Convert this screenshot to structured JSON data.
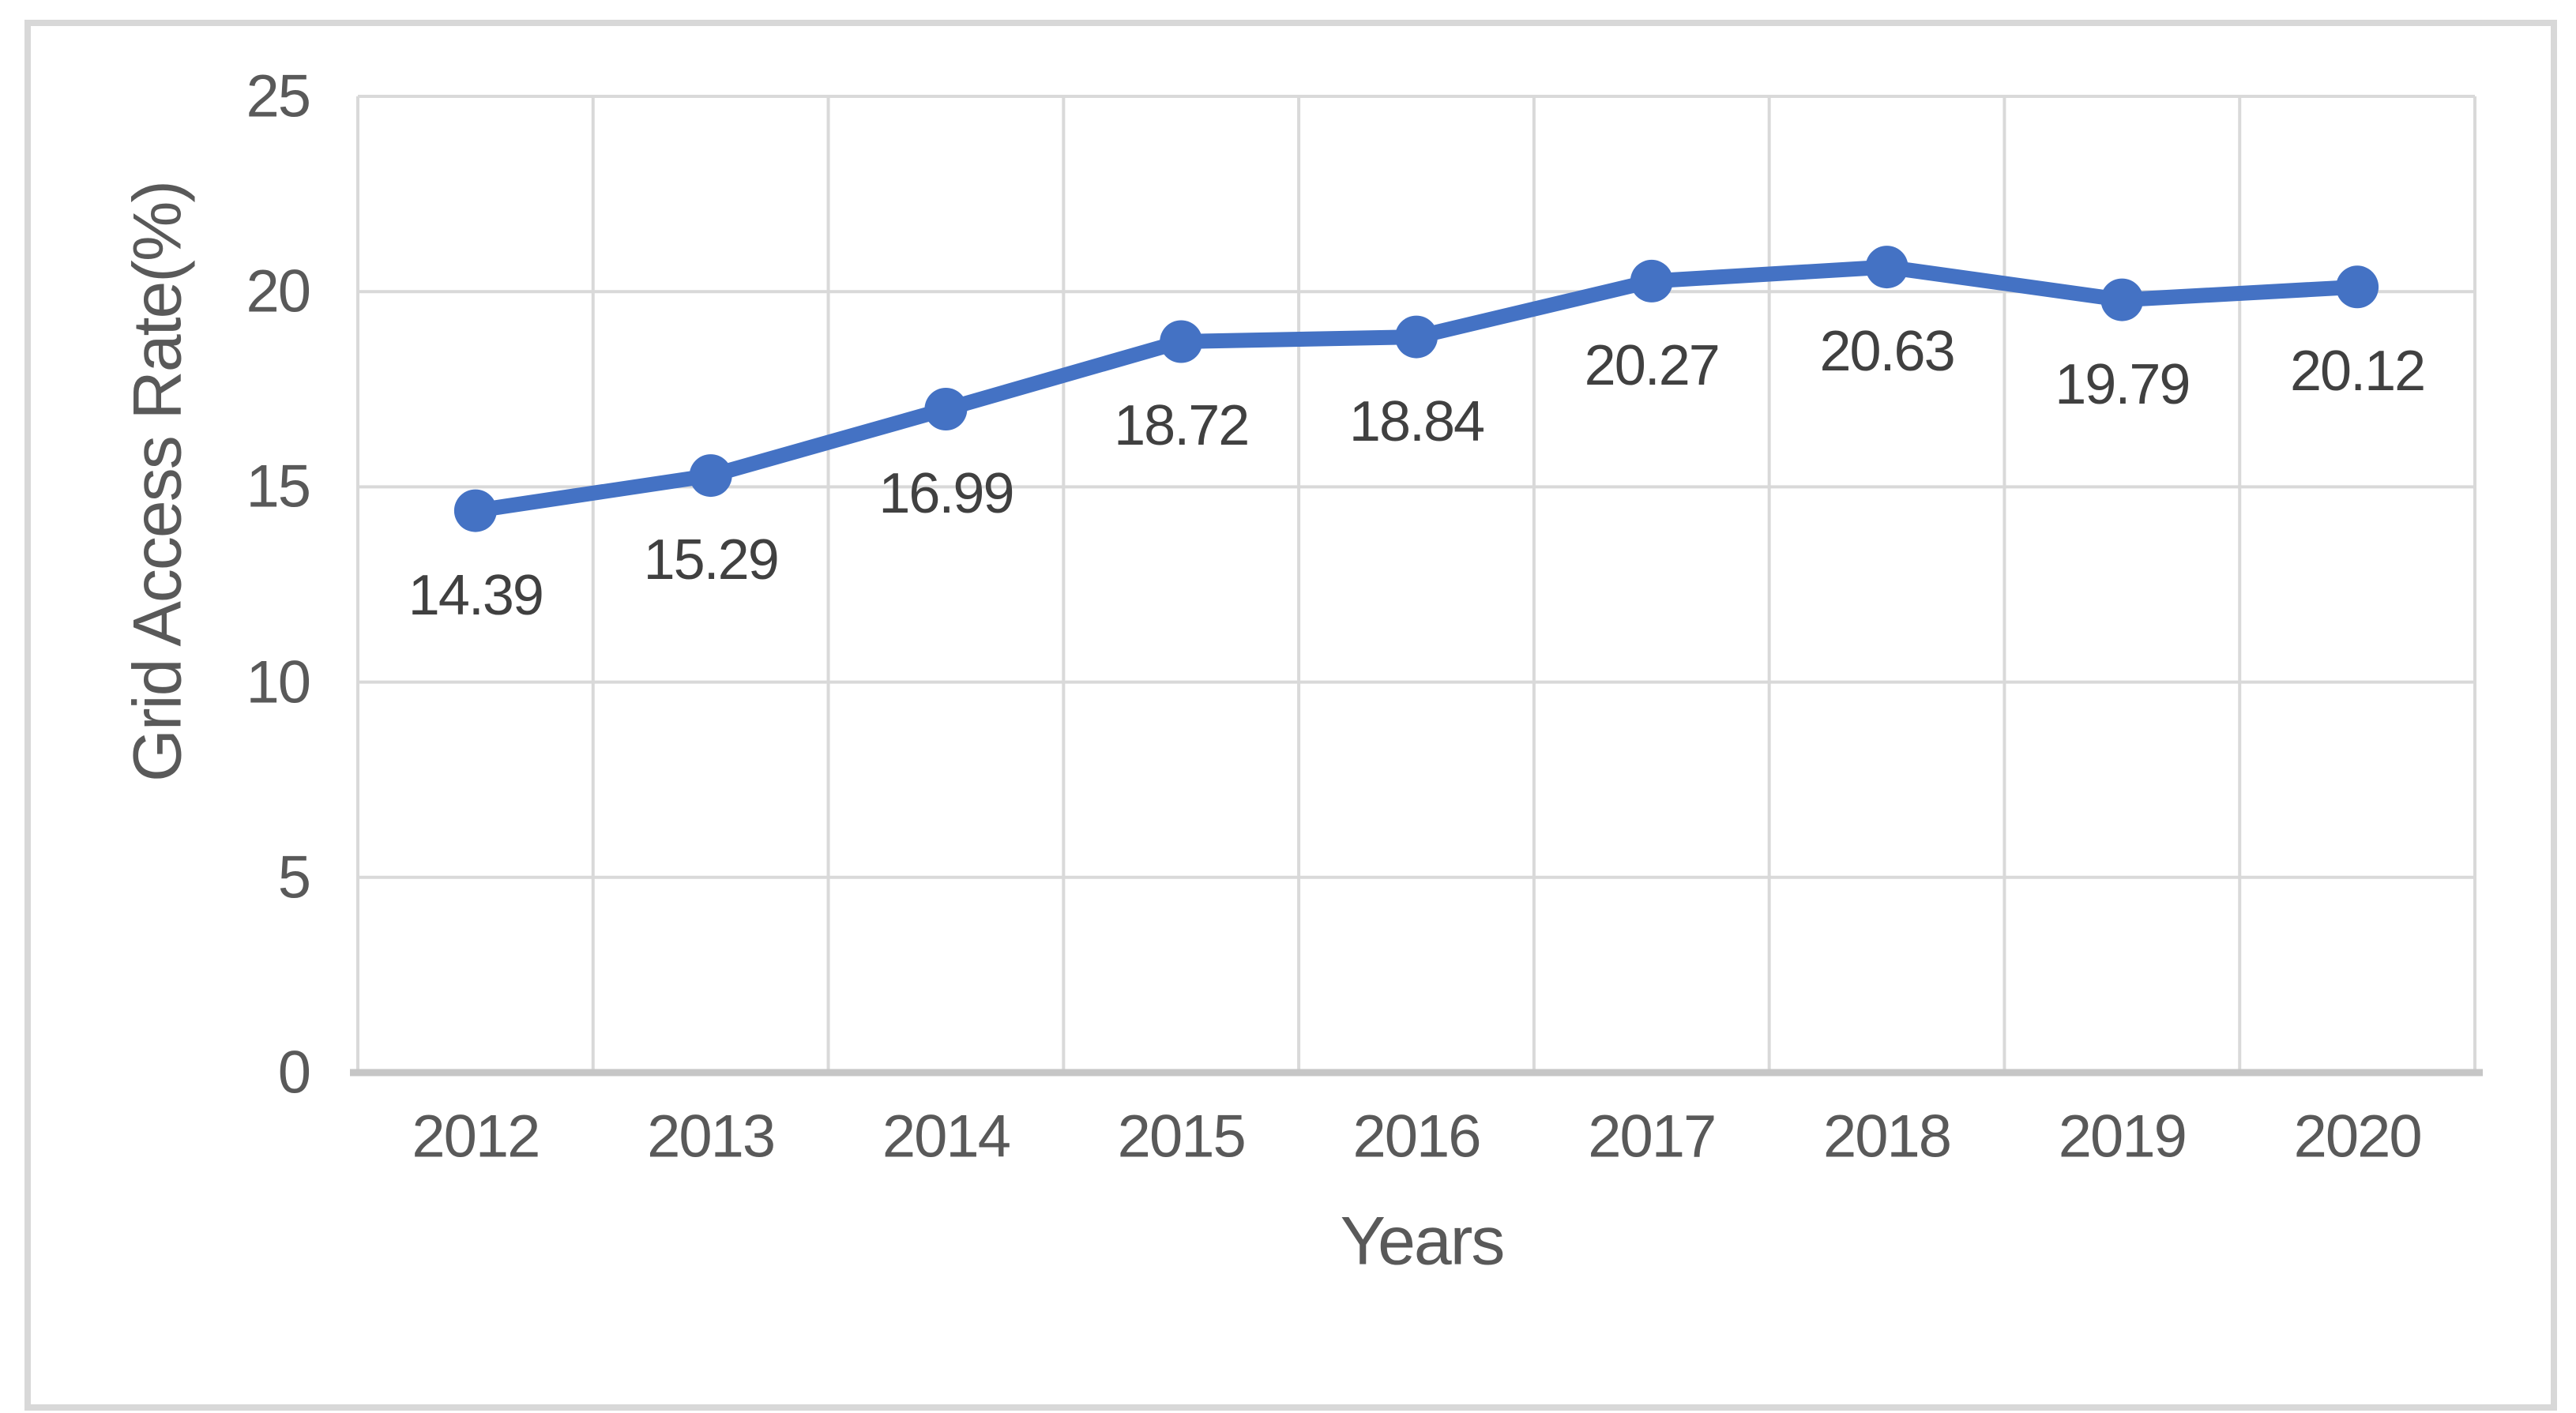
{
  "chart_data": {
    "type": "line",
    "title": "",
    "categories": [
      "2012",
      "2013",
      "2014",
      "2015",
      "2016",
      "2017",
      "2018",
      "2019",
      "2020"
    ],
    "series": [
      {
        "name": "Grid Access Rate",
        "values": [
          14.39,
          15.29,
          16.99,
          18.72,
          18.84,
          20.27,
          20.63,
          19.79,
          20.12
        ],
        "data_labels": [
          "14.39",
          "15.29",
          "16.99",
          "18.72",
          "18.84",
          "20.27",
          "20.63",
          "19.79",
          "20.12"
        ]
      }
    ],
    "xlabel": "Years",
    "ylabel": "Grid Access Rate(%)",
    "ylim": [
      0,
      25
    ],
    "ytick_step": 5,
    "yticks": [
      "0",
      "5",
      "10",
      "15",
      "20",
      "25"
    ],
    "grid": true,
    "legend": false,
    "data_labels_position": "below",
    "marker": "circle",
    "colors": {
      "line": "#4472C4",
      "marker": "#4472C4",
      "gridline": "#D9D9D9",
      "axis_line": "#C6C6C6",
      "tick_text": "#595959",
      "data_label_text": "#404040",
      "chart_border": "#D8D8D8",
      "background": "#FFFFFF"
    }
  }
}
